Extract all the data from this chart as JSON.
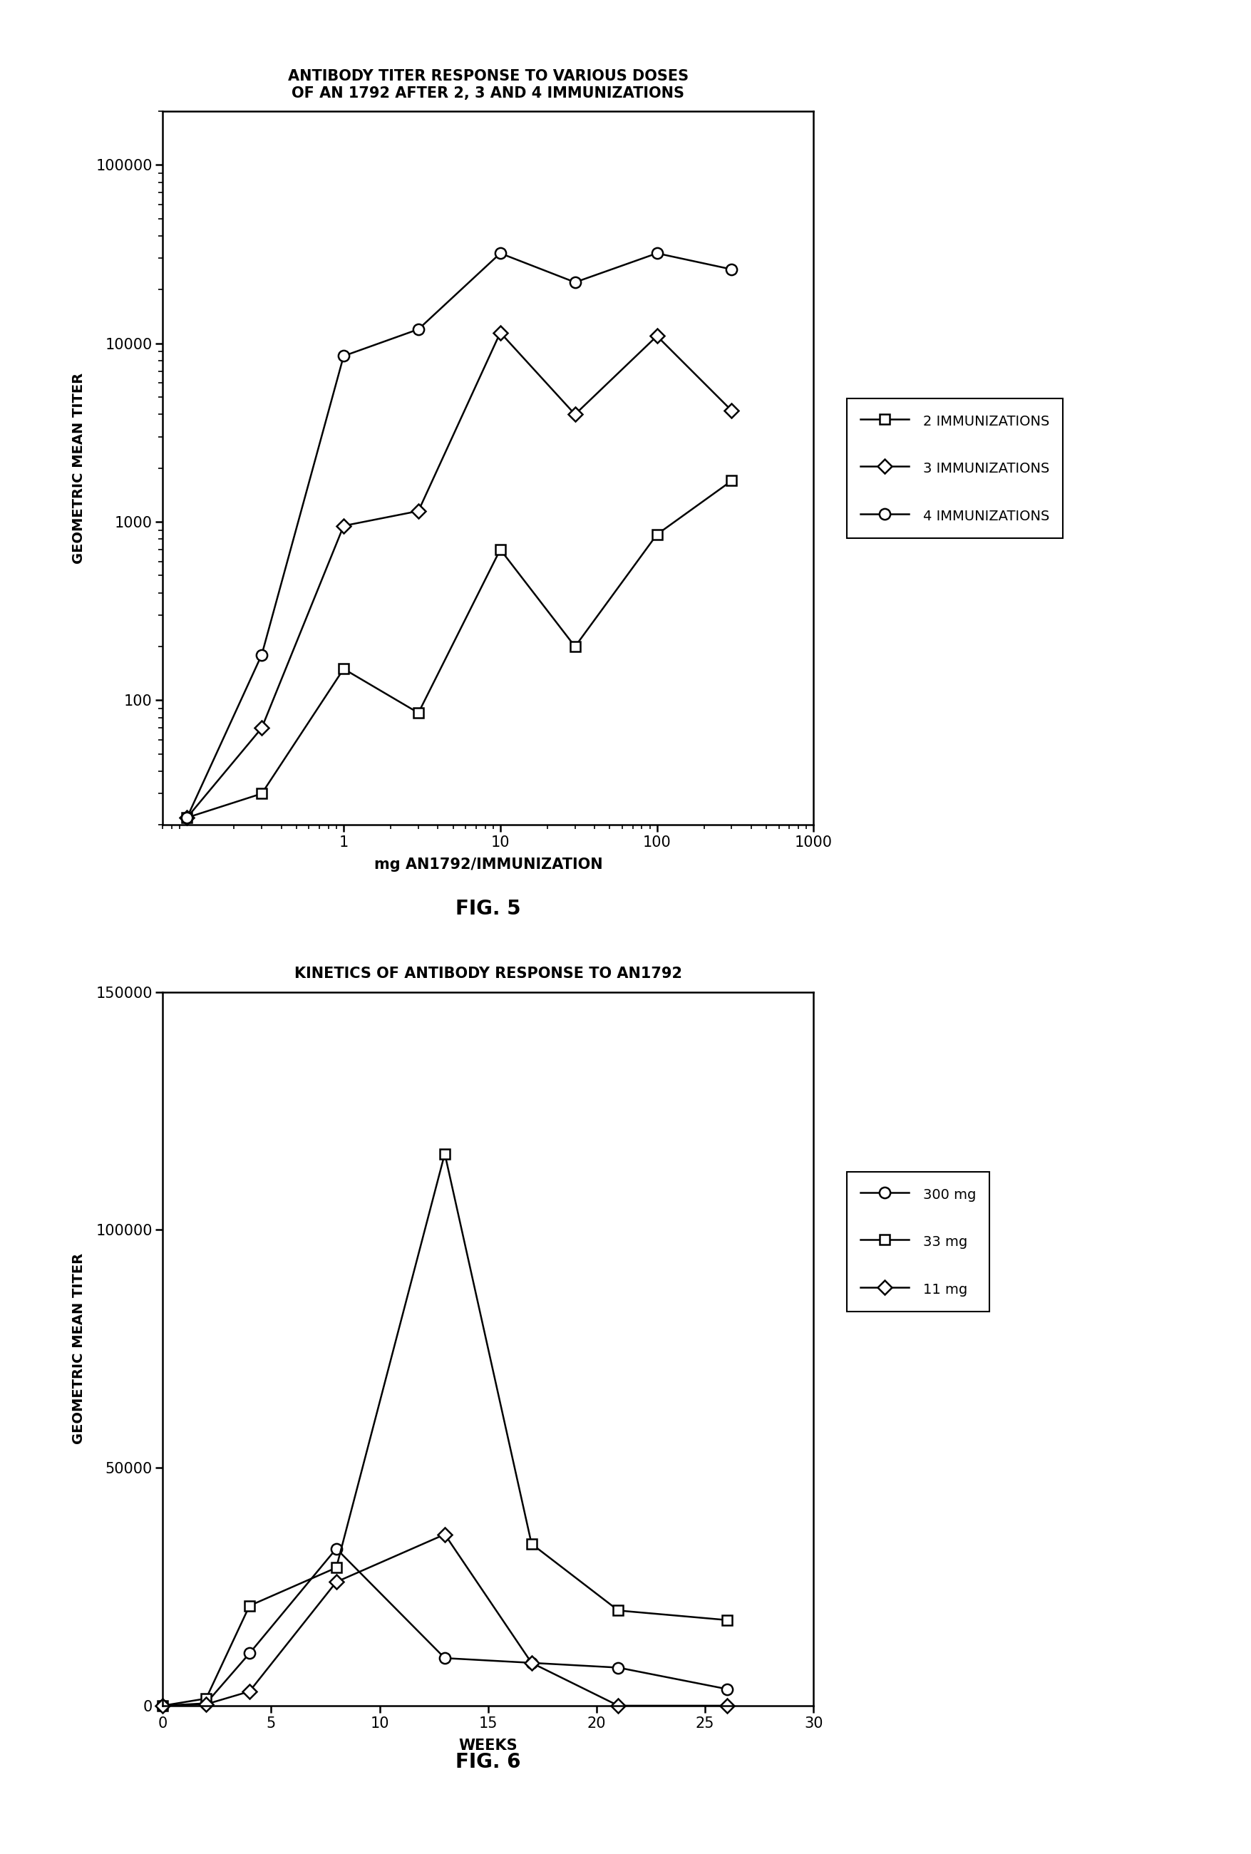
{
  "fig5": {
    "title": "ANTIBODY TITER RESPONSE TO VARIOUS DOSES\nOF AN 1792 AFTER 2, 3 AND 4 IMMUNIZATIONS",
    "xlabel": "mg AN1792/IMMUNIZATION",
    "ylabel": "GEOMETRIC MEAN TITER",
    "fig_label": "FIG. 5",
    "series": [
      {
        "label": "2 IMMUNIZATIONS",
        "marker": "s",
        "x": [
          0.1,
          0.3,
          1.0,
          3.0,
          10.0,
          30.0,
          100.0,
          300.0
        ],
        "y": [
          22,
          30,
          150,
          85,
          700,
          200,
          850,
          1700
        ]
      },
      {
        "label": "3 IMMUNIZATIONS",
        "marker": "D",
        "x": [
          0.1,
          0.3,
          1.0,
          3.0,
          10.0,
          30.0,
          100.0,
          300.0
        ],
        "y": [
          22,
          70,
          950,
          1150,
          11500,
          4000,
          11000,
          4200
        ]
      },
      {
        "label": "4 IMMUNIZATIONS",
        "marker": "o",
        "x": [
          0.1,
          0.3,
          1.0,
          3.0,
          10.0,
          30.0,
          100.0,
          300.0
        ],
        "y": [
          22,
          180,
          8500,
          12000,
          32000,
          22000,
          32000,
          26000
        ]
      }
    ],
    "xlim": [
      0.07,
      700
    ],
    "ylim": [
      20,
      200000
    ],
    "xticks": [
      1,
      10,
      100,
      1000
    ],
    "yticks": [
      100,
      1000,
      10000,
      100000
    ],
    "ytick_labels": [
      "100",
      "1000",
      "10000",
      "100000"
    ]
  },
  "fig6": {
    "title": "KINETICS OF ANTIBODY RESPONSE TO AN1792",
    "xlabel": "WEEKS",
    "ylabel": "GEOMETRIC MEAN TITER",
    "fig_label": "FIG. 6",
    "series": [
      {
        "label": "300 mg",
        "marker": "o",
        "x": [
          0,
          2,
          4,
          8,
          13,
          17,
          21,
          26
        ],
        "y": [
          0,
          500,
          11000,
          33000,
          10000,
          9000,
          8000,
          3500
        ]
      },
      {
        "label": "33 mg",
        "marker": "s",
        "x": [
          0,
          2,
          4,
          8,
          13,
          17,
          21,
          26
        ],
        "y": [
          0,
          1500,
          21000,
          29000,
          116000,
          34000,
          20000,
          18000
        ]
      },
      {
        "label": "11 mg",
        "marker": "D",
        "x": [
          0,
          2,
          4,
          8,
          13,
          17,
          21,
          26
        ],
        "y": [
          0,
          300,
          3000,
          26000,
          36000,
          9000,
          0,
          0
        ]
      }
    ],
    "xlim": [
      0,
      30
    ],
    "ylim": [
      0,
      150000
    ],
    "xticks": [
      0,
      5,
      10,
      15,
      20,
      25,
      30
    ],
    "yticks": [
      0,
      50000,
      100000,
      150000
    ],
    "ytick_labels": [
      "0",
      "50000",
      "100000",
      "150000"
    ]
  }
}
